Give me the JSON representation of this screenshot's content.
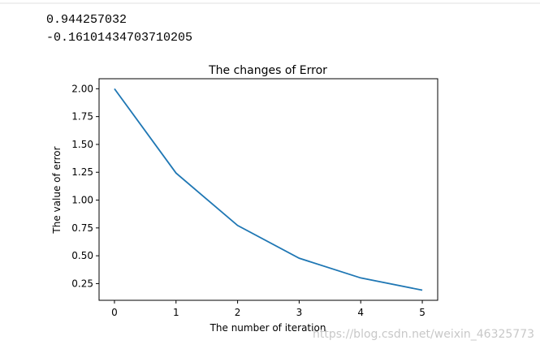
{
  "output_lines": [
    "0.944257032",
    "-0.16101434703710205"
  ],
  "watermark": "https://blog.csdn.net/weixin_46325773",
  "chart_data": {
    "type": "line",
    "title": "The changes of Error",
    "x_label": "The number of iteration",
    "y_label": "The value of error",
    "x": [
      0,
      1,
      2,
      3,
      4,
      5
    ],
    "values": [
      2.0,
      1.243,
      0.772,
      0.478,
      0.301,
      0.191
    ],
    "color": "#1f77b4",
    "xlim": [
      -0.25,
      5.25
    ],
    "xticks": [
      0,
      1,
      2,
      3,
      4,
      5
    ],
    "ylim": [
      0.1,
      2.09
    ],
    "yticks": [
      {
        "value": 0.25,
        "label": "0.25"
      },
      {
        "value": 0.5,
        "label": "0.50"
      },
      {
        "value": 0.75,
        "label": "0.75"
      },
      {
        "value": 1.0,
        "label": "1.00"
      },
      {
        "value": 1.25,
        "label": "1.25"
      },
      {
        "value": 1.5,
        "label": "1.50"
      },
      {
        "value": 1.75,
        "label": "1.75"
      },
      {
        "value": 2.0,
        "label": "2.00"
      }
    ],
    "grid": false
  }
}
